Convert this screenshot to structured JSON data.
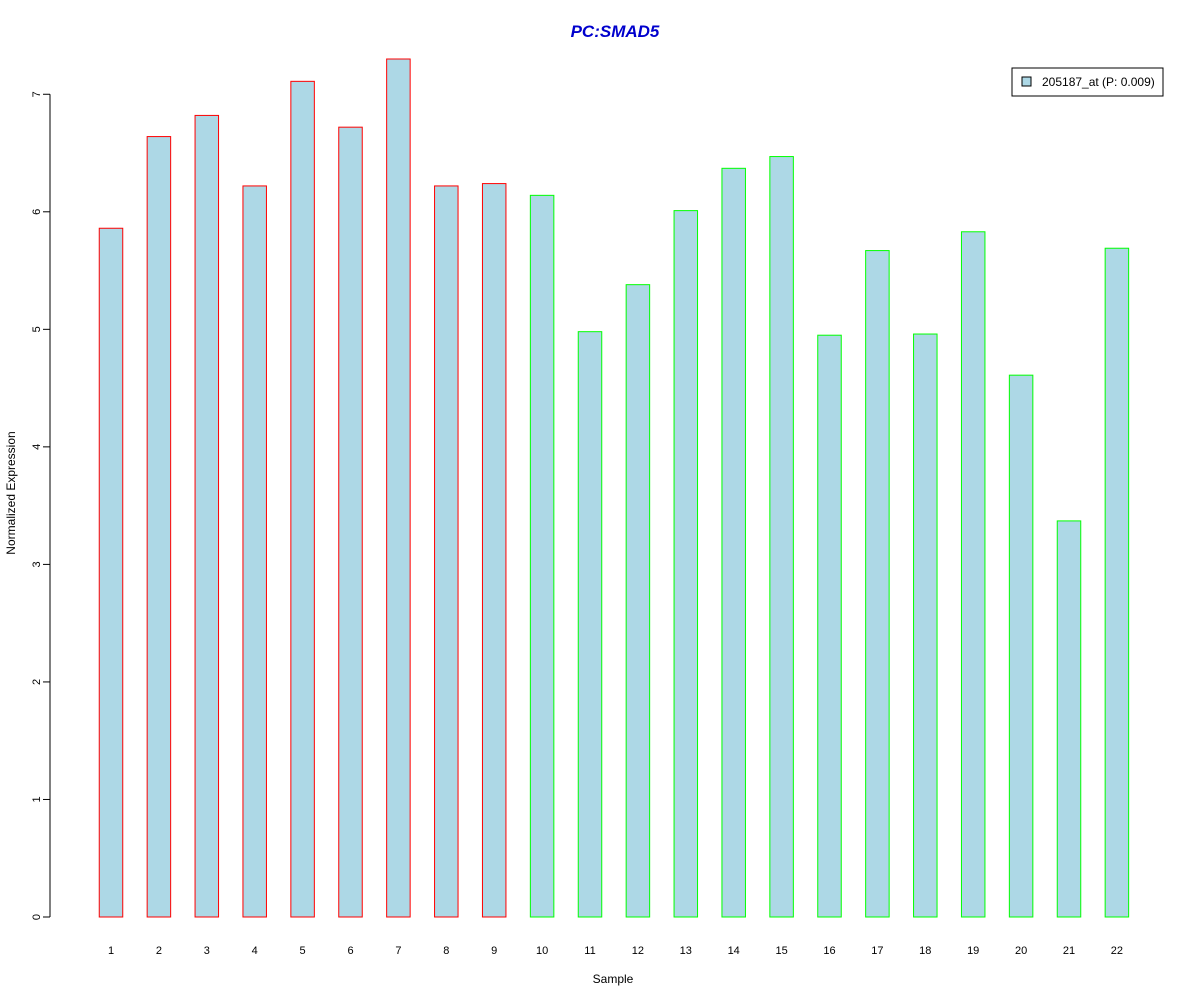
{
  "chart_data": {
    "type": "bar",
    "title": "PC:SMAD5",
    "xlabel": "Sample",
    "ylabel": "Normalized Expression",
    "categories": [
      "1",
      "2",
      "3",
      "4",
      "5",
      "6",
      "7",
      "8",
      "9",
      "10",
      "11",
      "12",
      "13",
      "14",
      "15",
      "16",
      "17",
      "18",
      "19",
      "20",
      "21",
      "22"
    ],
    "series": [
      {
        "name": "205187_at (P: 0.009)",
        "values": [
          5.86,
          6.64,
          6.82,
          6.22,
          7.11,
          6.72,
          7.3,
          6.22,
          6.24,
          6.14,
          4.98,
          5.38,
          6.01,
          6.37,
          6.47,
          4.95,
          5.67,
          4.96,
          5.83,
          4.61,
          3.37,
          5.69
        ]
      }
    ],
    "group_of_bar": [
      "group1",
      "group1",
      "group1",
      "group1",
      "group1",
      "group1",
      "group1",
      "group1",
      "group1",
      "group2",
      "group2",
      "group2",
      "group2",
      "group2",
      "group2",
      "group2",
      "group2",
      "group2",
      "group2",
      "group2",
      "group2",
      "group2"
    ],
    "yticks": [
      0,
      1,
      2,
      3,
      4,
      5,
      6,
      7
    ],
    "ylim": [
      0,
      7.3
    ],
    "grid": false,
    "legend_position": "top-right",
    "colors": {
      "bar_fill": "#add8e6",
      "group1_border": "#ff0000",
      "group2_border": "#00ff00",
      "title": "#0000cd",
      "axis": "#000000"
    }
  }
}
